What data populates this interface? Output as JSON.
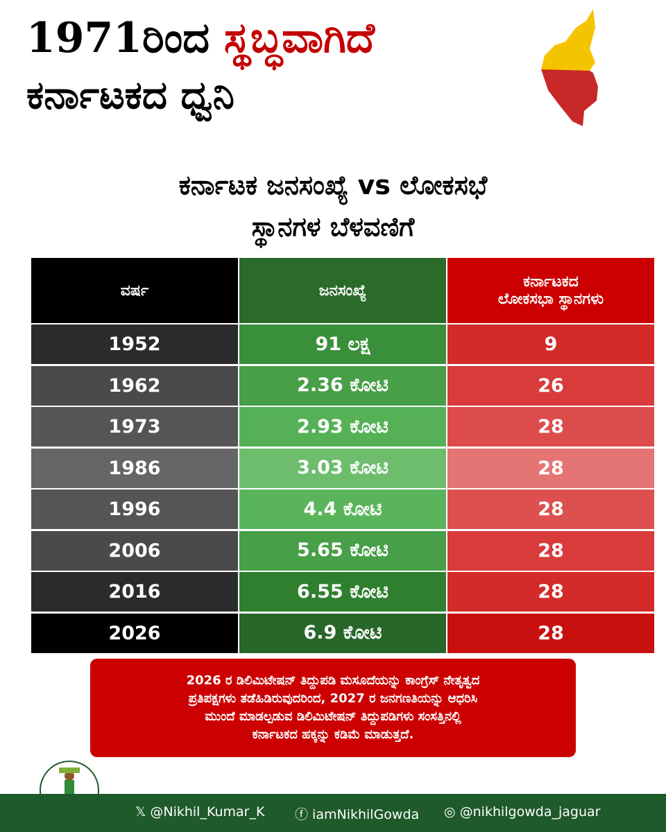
{
  "header": {
    "title_line1": [
      "1971ರಿಂದ",
      "ಸ್ಥಬ್ಧವಾಗಿದೆ"
    ],
    "title_line2": "ಕರ್ನಾಟಕದ ಧ್ವನಿ"
  },
  "subtitle": [
    "ಕರ್ನಾಟಕ ಜನಸಂಖ್ಯೆ vs ಲೋಕಸಭೆ",
    "ಸ್ಥಾನಗಳ ಬೆಳವಣಿಗೆ"
  ],
  "table": {
    "columns": [
      [
        "ವರ್ಷ"
      ],
      [
        "ಜನಸಂಖ್ಯೆ"
      ],
      [
        "ಕರ್ನಾಟಕದ",
        "ಲೋಕಸಭಾ ಸ್ಥಾನಗಳು"
      ]
    ],
    "rows": [
      [
        1952,
        "91 ಲಕ್ಷ",
        9
      ],
      [
        1962,
        "2.36 ಕೋಟಿ",
        26
      ],
      [
        1973,
        "2.93 ಕೋಟಿ",
        28
      ],
      [
        1986,
        "3.03 ಕೋಟಿ",
        28
      ],
      [
        1996,
        "4.4 ಕೋಟಿ",
        28
      ],
      [
        2006,
        "5.65 ಕೋಟಿ",
        28
      ],
      [
        2016,
        "6.55 ಕೋಟಿ",
        28
      ],
      [
        2026,
        "6.9 ಕೋಟಿ",
        28
      ]
    ]
  },
  "note": [
    "2026 ರ ಡಿಲಿಮಿಟೇಷನ್ ತಿದ್ದುಪಡಿ ಮಸೂದೆಯನ್ನು ಕಾಂಗ್ರೆಸ್ ನೇತೃತ್ವದ",
    "ಪ್ರತಿಪಕ್ಷಗಳು ತಡೆಹಿಡಿರುವುದರಿಂದ, 2027 ರ ಜನಗಣತಿಯನ್ನು ಆಧರಿಸಿ",
    "ಮುಂದೆ ಮಾಡಲ್ಪಡುವ ಡಿಲಿಮಿಟೇಷನ್  ತಿದ್ದುಪಡಿಗಳು ಸಂಸತ್ತಿನಲ್ಲಿ",
    "ಕರ್ನಾಟಕದ ಹಕ್ಕನ್ನು ಕಡಿಮೆ ಮಾಡುತ್ತದೆ."
  ],
  "footer": {
    "twitter": "@Nikhil_Kumar_K",
    "facebook": "iamNikhilGowda",
    "instagram": "@nikhilgowda_jaguar"
  }
}
